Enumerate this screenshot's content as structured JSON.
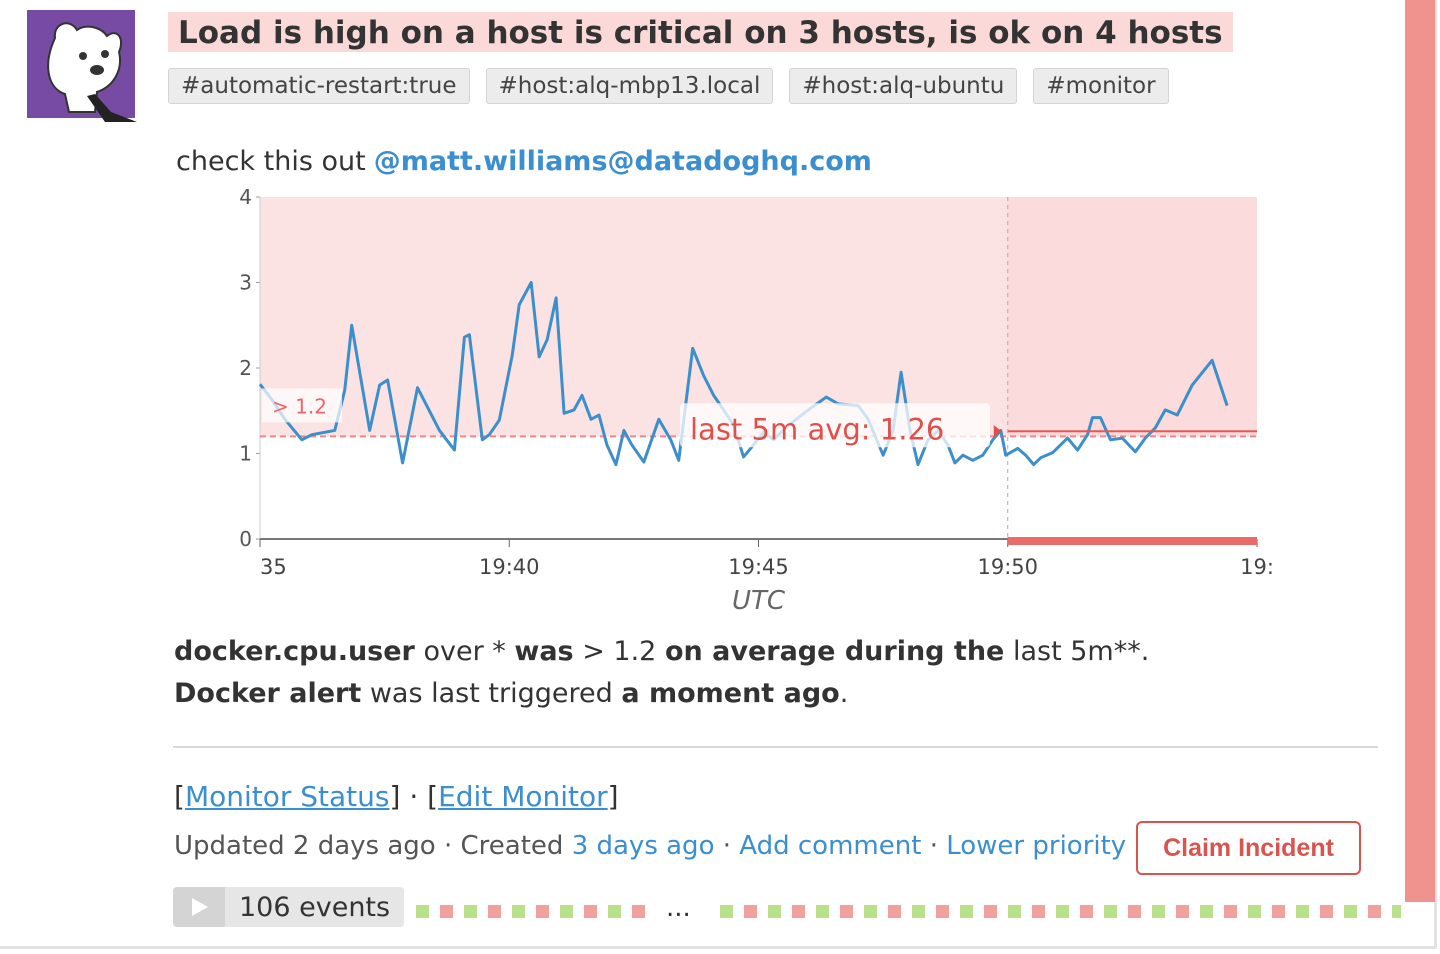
{
  "event": {
    "title": "Load is high on a host is critical on 3 hosts, is ok on 4 hosts",
    "tags": [
      "#automatic-restart:true",
      "#host:alq-mbp13.local",
      "#host:alq-ubuntu",
      "#monitor"
    ],
    "message_prefix": "check this out",
    "mention": "@matt.williams@datadoghq.com",
    "line1": [
      "docker.cpu.user",
      "over",
      "*",
      "was",
      "> 1.2",
      "on average during the",
      "last 5m**."
    ],
    "line2": [
      "Docker alert",
      "was last triggered",
      "a moment ago",
      "."
    ],
    "links": {
      "open": "[",
      "close": "]",
      "separator": "·",
      "items": [
        "Monitor Status",
        "Edit Monitor"
      ]
    },
    "meta": {
      "updated": "Updated 2 days ago",
      "created": "Created",
      "created_when": "3 days ago",
      "comment": "Add comment",
      "priority": "Lower priority"
    },
    "button": "Claim Incident",
    "events": "106 events",
    "ellipsis": "..."
  },
  "chart_data": {
    "type": "line",
    "xlabel": "UTC",
    "xlim": [
      35,
      55
    ],
    "xticks": [
      {
        "value": 35,
        "label": "35"
      },
      {
        "value": 40,
        "label": "19:40"
      },
      {
        "value": 45,
        "label": "19:45"
      },
      {
        "value": 50,
        "label": "19:50"
      },
      {
        "value": 55,
        "label": "19:"
      }
    ],
    "ylim": [
      0,
      4
    ],
    "yticks": [
      0,
      1,
      2,
      3,
      4
    ],
    "threshold": {
      "value": 1.2,
      "label": "> 1.2"
    },
    "average": {
      "value": 1.26,
      "label": "last 5m avg: 1.26"
    },
    "alert_window": [
      50,
      55
    ],
    "x": [
      35.0,
      35.24,
      35.5,
      35.84,
      36.04,
      36.5,
      36.7,
      36.84,
      37.2,
      37.4,
      37.56,
      37.86,
      38.16,
      38.6,
      38.9,
      39.1,
      39.2,
      39.46,
      39.6,
      39.8,
      40.06,
      40.2,
      40.44,
      40.6,
      40.76,
      40.94,
      41.1,
      41.3,
      41.46,
      41.64,
      41.8,
      41.96,
      42.14,
      42.3,
      42.46,
      42.7,
      43.0,
      43.24,
      43.4,
      43.68,
      43.9,
      44.1,
      44.3,
      44.5,
      44.7,
      44.9,
      45.1,
      45.3,
      45.6,
      46.0,
      46.36,
      46.6,
      47.0,
      47.2,
      47.5,
      47.7,
      47.86,
      48.04,
      48.2,
      48.4,
      48.6,
      48.8,
      48.94,
      49.1,
      49.3,
      49.5,
      49.7,
      49.86,
      49.96,
      50.2,
      50.36,
      50.52,
      50.66,
      50.9,
      51.2,
      51.4,
      51.6,
      51.7,
      51.86,
      52.06,
      52.3,
      52.56,
      52.76,
      52.96,
      53.16,
      53.4,
      53.7,
      54.1,
      54.4
    ],
    "series": [
      {
        "color": "#3d8fcc",
        "values": [
          1.81,
          1.63,
          1.4,
          1.16,
          1.22,
          1.27,
          1.74,
          2.5,
          1.27,
          1.8,
          1.86,
          0.89,
          1.77,
          1.27,
          1.04,
          2.36,
          2.39,
          1.16,
          1.22,
          1.39,
          2.15,
          2.74,
          3.0,
          2.13,
          2.33,
          2.82,
          1.47,
          1.51,
          1.68,
          1.4,
          1.45,
          1.1,
          0.87,
          1.27,
          1.1,
          0.9,
          1.4,
          1.16,
          0.92,
          2.23,
          1.91,
          1.68,
          1.51,
          1.33,
          0.96,
          1.1,
          1.25,
          1.16,
          1.33,
          1.51,
          1.66,
          1.58,
          1.56,
          1.4,
          0.98,
          1.27,
          1.95,
          1.27,
          0.87,
          1.16,
          1.27,
          1.1,
          0.89,
          0.98,
          0.92,
          0.98,
          1.16,
          1.27,
          0.98,
          1.06,
          0.98,
          0.87,
          0.95,
          1.01,
          1.18,
          1.04,
          1.22,
          1.42,
          1.42,
          1.16,
          1.18,
          1.02,
          1.18,
          1.3,
          1.51,
          1.45,
          1.8,
          2.09,
          1.56
        ]
      }
    ]
  }
}
